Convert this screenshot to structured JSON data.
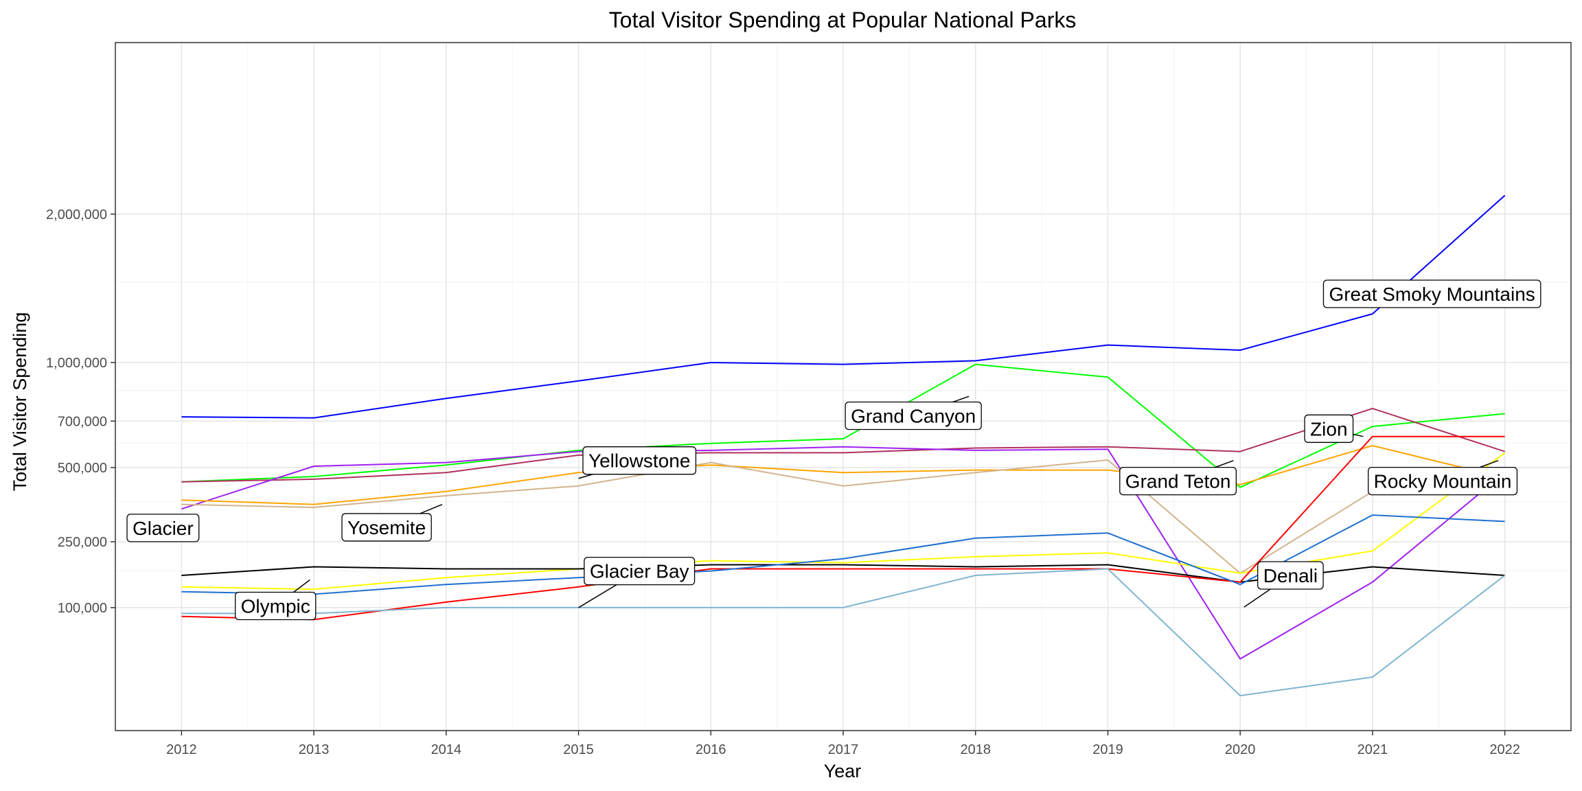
{
  "chart_data": {
    "type": "line",
    "title": "Total Visitor Spending at Popular National Parks",
    "xlabel": "Year",
    "ylabel": "Total Visitor Spending",
    "x": [
      2012,
      2013,
      2014,
      2015,
      2016,
      2017,
      2018,
      2019,
      2020,
      2021,
      2022
    ],
    "x_tick_labels": [
      "2012",
      "2013",
      "2014",
      "2015",
      "2016",
      "2017",
      "2018",
      "2019",
      "2020",
      "2021",
      "2022"
    ],
    "xlim": [
      2011.5,
      2022.5
    ],
    "y_scale": "sqrt",
    "ylim": [
      0,
      2370000
    ],
    "y_ticks": [
      {
        "value": 100000,
        "label": "100,000"
      },
      {
        "value": 250000,
        "label": "250,000"
      },
      {
        "value": 500000,
        "label": "500,000"
      },
      {
        "value": 700000,
        "label": "700,000"
      },
      {
        "value": 1000000,
        "label": "1,000,000"
      },
      {
        "value": 2000000,
        "label": "2,000,000"
      }
    ],
    "y_minor_ticks": [
      175000,
      375000,
      600000,
      850000,
      1500000
    ],
    "grid": true,
    "legend": "none",
    "series": [
      {
        "name": "Great Smoky Mountains",
        "color": "#0000ff",
        "values": [
          720000,
          715000,
          810000,
          900000,
          1000000,
          990000,
          1010000,
          1100000,
          1070000,
          1290000,
          2150000
        ]
      },
      {
        "name": "Grand Canyon",
        "color": "#00ff00",
        "values": [
          445000,
          465000,
          510000,
          570000,
          600000,
          620000,
          990000,
          920000,
          425000,
          675000,
          735000
        ]
      },
      {
        "name": "Zion",
        "color": "#b03060",
        "values": [
          445000,
          455000,
          480000,
          550000,
          560000,
          560000,
          580000,
          585000,
          565000,
          760000,
          565000
        ]
      },
      {
        "name": "Yellowstone",
        "color": "#a020f0",
        "values": [
          350000,
          505000,
          520000,
          565000,
          570000,
          585000,
          570000,
          575000,
          30000,
          150000,
          480000
        ]
      },
      {
        "name": "Grand Teton",
        "color": "#ffa500",
        "values": [
          380000,
          365000,
          410000,
          480000,
          510000,
          480000,
          490000,
          490000,
          435000,
          590000,
          460000
        ]
      },
      {
        "name": "Rocky Mountain",
        "color": "#d2b48c",
        "values": [
          365000,
          355000,
          395000,
          430000,
          520000,
          430000,
          480000,
          530000,
          170000,
          410000,
          470000
        ]
      },
      {
        "name": "Yosemite",
        "color": "#ffff00",
        "values": [
          140000,
          135000,
          160000,
          180000,
          200000,
          195000,
          210000,
          220000,
          170000,
          225000,
          560000
        ]
      },
      {
        "name": "Glacier",
        "color": "#000000",
        "values": [
          165000,
          185000,
          180000,
          180000,
          190000,
          190000,
          185000,
          190000,
          150000,
          185000,
          165000
        ]
      },
      {
        "name": "Olympic",
        "color": "#ff0000",
        "values": [
          85000,
          80000,
          110000,
          140000,
          180000,
          180000,
          180000,
          180000,
          150000,
          630000,
          630000
        ]
      },
      {
        "name": "Denali",
        "color": "#1f6fd0",
        "values": [
          130000,
          125000,
          145000,
          160000,
          175000,
          205000,
          260000,
          275000,
          145000,
          330000,
          310000
        ]
      },
      {
        "name": "Glacier Bay",
        "color": "#7fb5cf",
        "values": [
          90000,
          90000,
          100000,
          100000,
          100000,
          100000,
          165000,
          180000,
          5000,
          15000,
          165000
        ]
      }
    ],
    "annotations": [
      {
        "label": "Great Smoky Mountains",
        "x": 2021.45,
        "y": 1420000,
        "pointX": 2021.05,
        "pointY": 1350000
      },
      {
        "label": "Grand Canyon",
        "x": 2017.53,
        "y": 725000,
        "pointX": 2017.95,
        "pointY": 820000
      },
      {
        "label": "Zion",
        "x": 2020.67,
        "y": 665000,
        "pointX": 2020.93,
        "pointY": 630000
      },
      {
        "label": "Yellowstone",
        "x": 2015.46,
        "y": 528000,
        "pointX": 2015.0,
        "pointY": 458000
      },
      {
        "label": "Grand Teton",
        "x": 2019.53,
        "y": 448000,
        "pointX": 2019.95,
        "pointY": 528000
      },
      {
        "label": "Rocky Mountain",
        "x": 2021.53,
        "y": 448000,
        "pointX": 2021.95,
        "pointY": 528000
      },
      {
        "label": "Glacier",
        "x": 2011.86,
        "y": 290000,
        "pointX": 2011.9,
        "pointY": 290000
      },
      {
        "label": "Yosemite",
        "x": 2013.55,
        "y": 292000,
        "pointX": 2013.97,
        "pointY": 365000
      },
      {
        "label": "Glacier Bay",
        "x": 2015.46,
        "y": 175000,
        "pointX": 2015.0,
        "pointY": 100000
      },
      {
        "label": "Olympic",
        "x": 2012.71,
        "y": 103000,
        "pointX": 2012.97,
        "pointY": 155000
      },
      {
        "label": "Denali",
        "x": 2020.38,
        "y": 165000,
        "pointX": 2020.03,
        "pointY": 101000
      }
    ]
  }
}
